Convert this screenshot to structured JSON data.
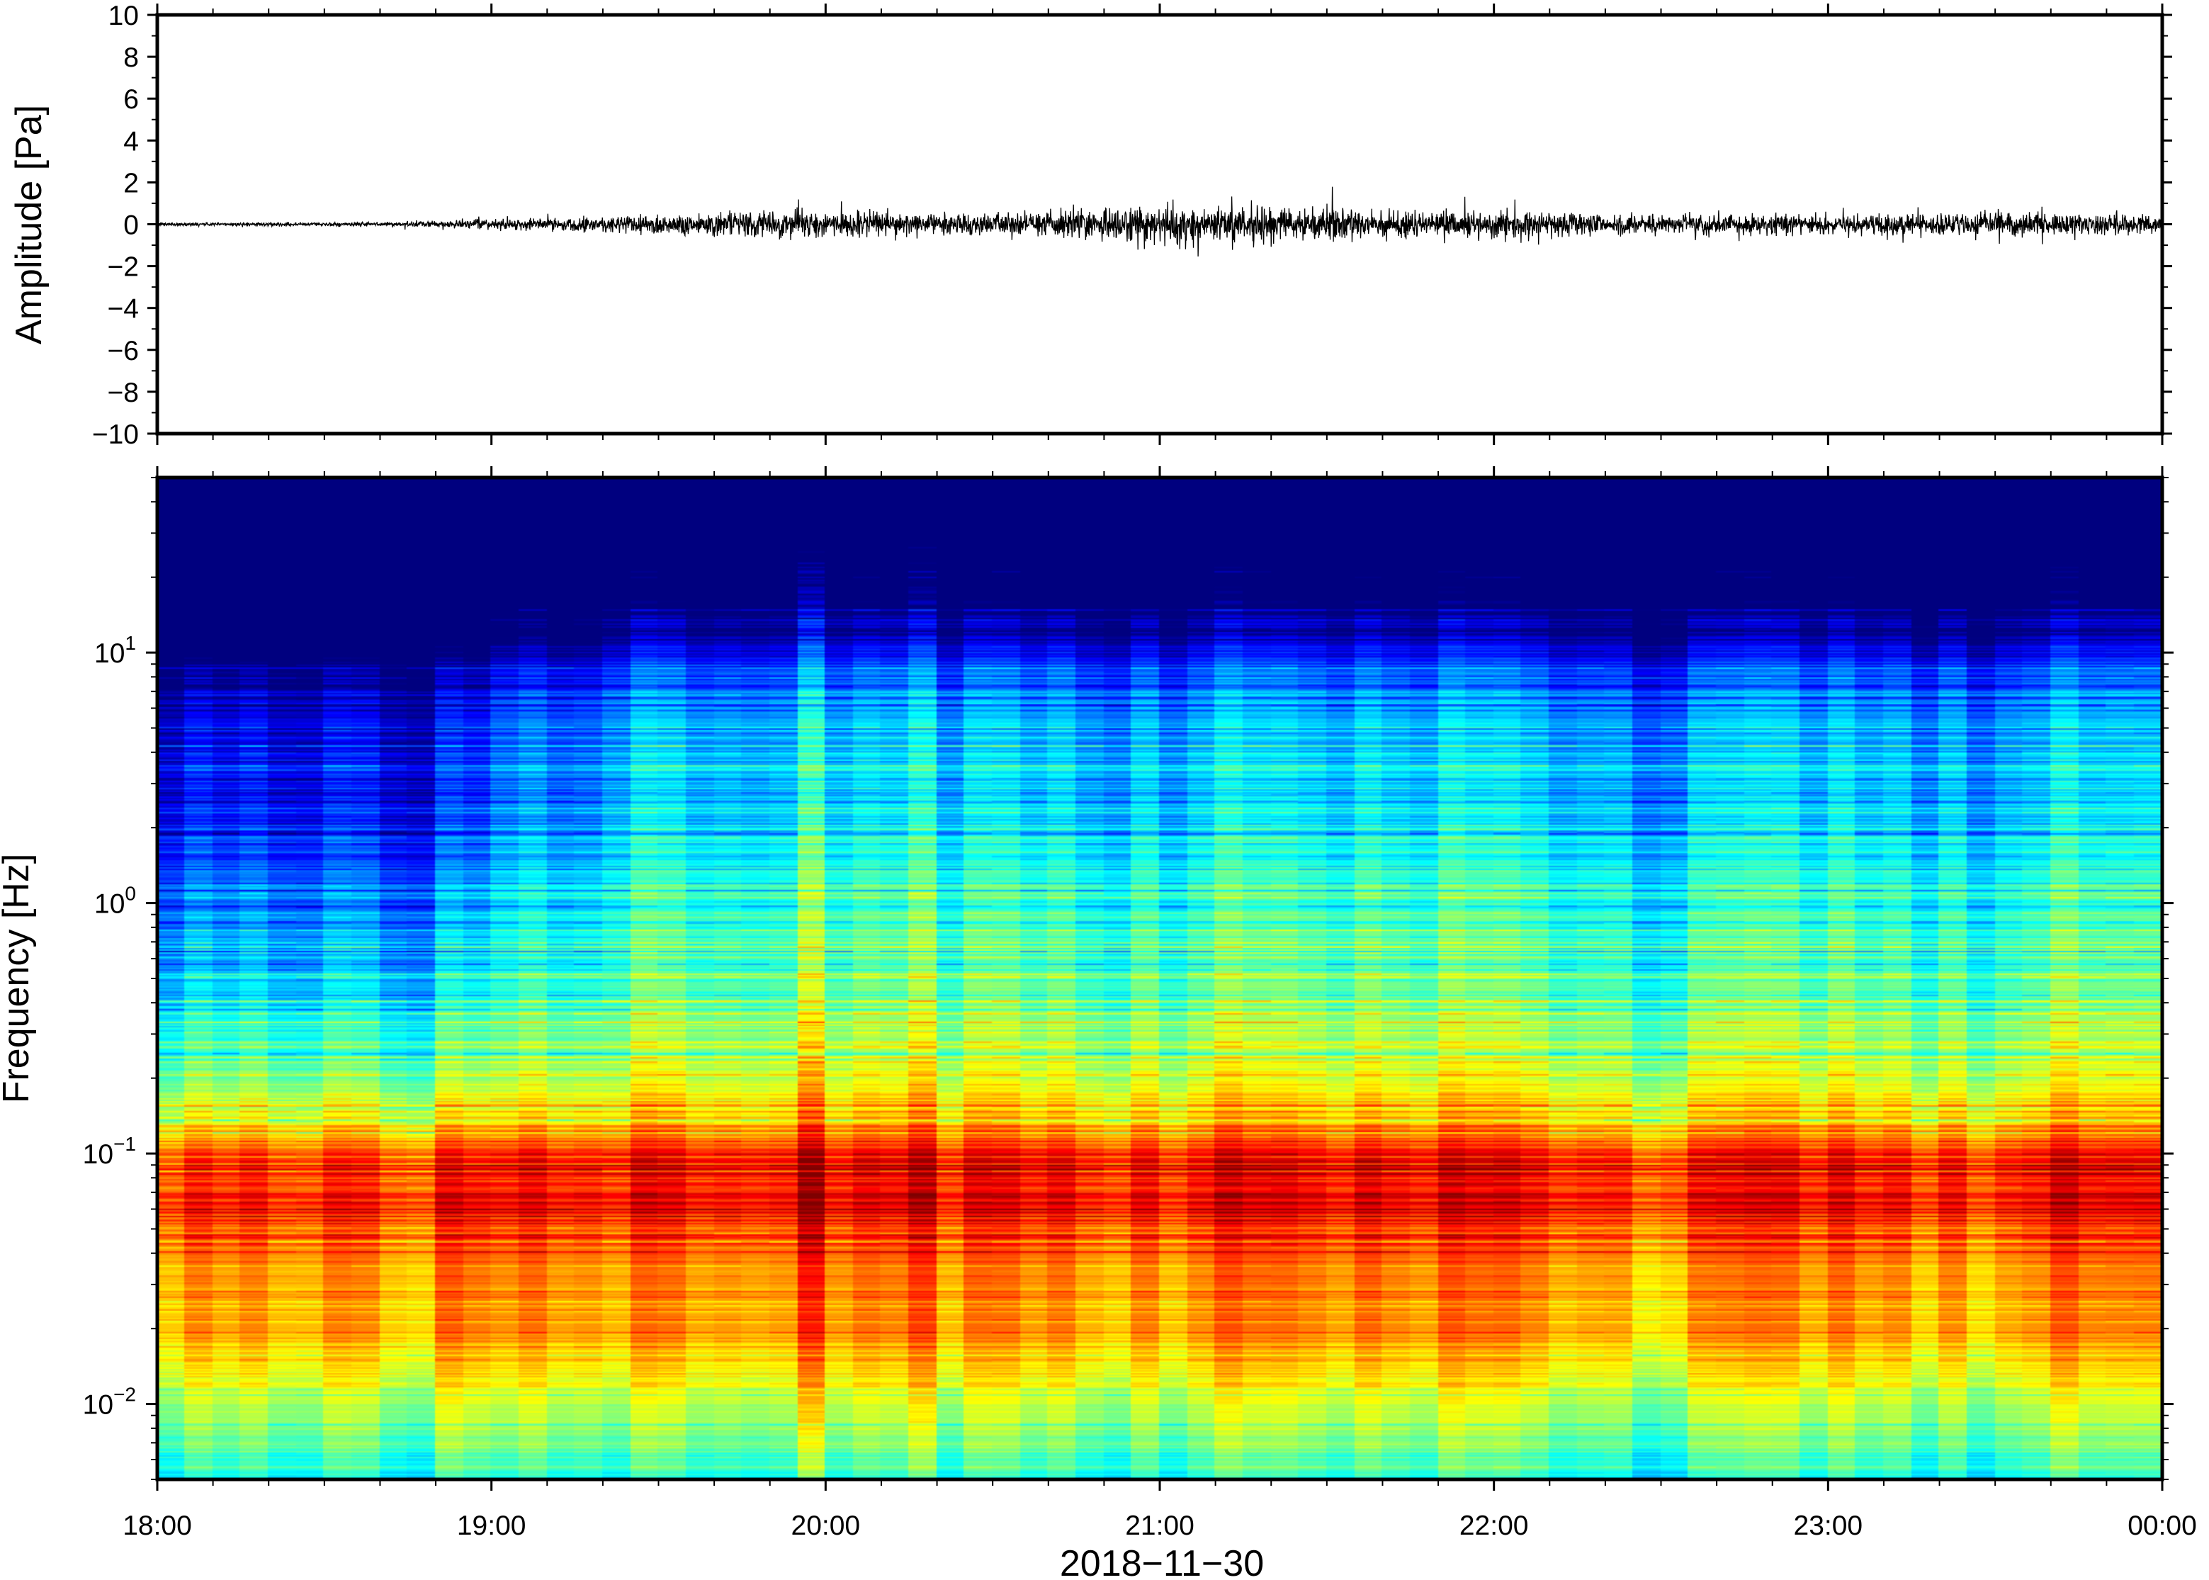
{
  "chart_data": [
    {
      "type": "line",
      "ylabel": "Amplitude [Pa]",
      "ylim": [
        -10,
        10
      ],
      "y_ticks": [
        10,
        8,
        6,
        4,
        2,
        0,
        -2,
        -4,
        -6,
        -8,
        -10
      ],
      "y_tick_labels": [
        "10",
        "8",
        "6",
        "4",
        "2",
        "0",
        "−2",
        "−4",
        "−6",
        "−8",
        "−10"
      ],
      "xlim_hours": [
        18,
        24
      ],
      "envelope": {
        "time_hours": [
          18.0,
          18.5,
          18.75,
          19.0,
          19.25,
          19.4,
          19.9,
          20.5,
          21.0,
          21.5,
          22.0,
          22.5,
          23.0,
          23.5,
          24.0
        ],
        "max_amplitude": [
          0.1,
          0.1,
          0.15,
          0.3,
          0.4,
          0.6,
          0.8,
          0.6,
          1.2,
          0.9,
          0.8,
          0.6,
          0.6,
          0.7,
          0.6
        ]
      },
      "series": [
        {
          "color": "#000000"
        }
      ]
    },
    {
      "type": "heatmap",
      "xlabel": "2018−11−30",
      "ylabel": "Frequency [Hz]",
      "yscale": "log",
      "ylim": [
        0.005,
        50
      ],
      "y_ticks": [
        {
          "value": 0.01,
          "base": "10",
          "exp": "−2"
        },
        {
          "value": 0.1,
          "base": "10",
          "exp": "−1"
        },
        {
          "value": 1,
          "base": "10",
          "exp": "0"
        },
        {
          "value": 10,
          "base": "10",
          "exp": "1"
        }
      ],
      "x_ticks": [
        {
          "hour": 18,
          "label": "18:00"
        },
        {
          "hour": 19,
          "label": "19:00"
        },
        {
          "hour": 20,
          "label": "20:00"
        },
        {
          "hour": 21,
          "label": "21:00"
        },
        {
          "hour": 22,
          "label": "22:00"
        },
        {
          "hour": 23,
          "label": "23:00"
        },
        {
          "hour": 24,
          "label": "00:00"
        }
      ],
      "colormap": [
        "#00007f",
        "#0000ff",
        "#007fff",
        "#00ffff",
        "#7fff7f",
        "#ffff00",
        "#ff7f00",
        "#ff0000",
        "#7f0000"
      ],
      "time_windows": 72,
      "peak_band_hz": [
        0.04,
        0.15
      ],
      "quiet_period_hours": [
        18.0,
        19.0
      ],
      "active_onset_hour": 19.35
    }
  ]
}
